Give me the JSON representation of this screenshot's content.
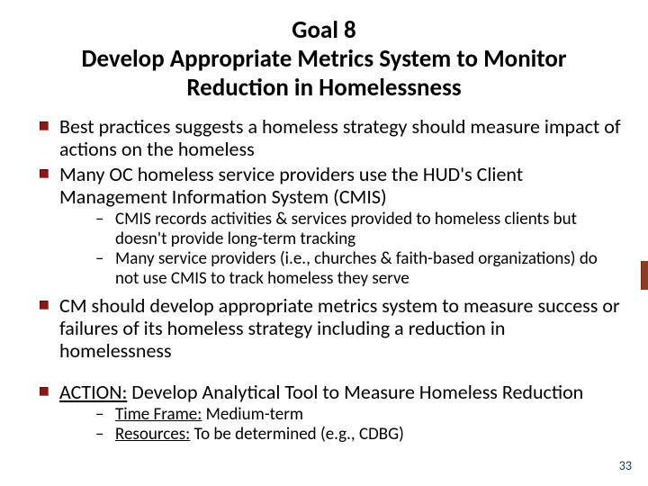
{
  "title": "Goal 8\nDevelop Appropriate Metrics System to Monitor Reduction in Homelessness",
  "bullets": {
    "b1": "Best practices suggests a homeless strategy should measure impact of actions on the homeless",
    "b2": "Many OC homeless service providers use the HUD's Client Management Information System (CMIS)",
    "b2_sub": {
      "s1": "CMIS records activities & services provided to homeless clients but doesn't provide long-term tracking",
      "s2": "Many service providers (i.e., churches & faith-based organizations) do not use CMIS to track homeless they serve"
    },
    "b3": "CM should develop appropriate metrics system to measure success or failures of its homeless strategy including a reduction in homelessness",
    "action": {
      "label": "ACTION:",
      "text": " Develop Analytical Tool to Measure Homeless Reduction"
    },
    "action_sub": {
      "s1_label": "Time Frame:",
      "s1_text": " Medium-term",
      "s2_label": "Resources:",
      "s2_text": "  To be determined (e.g., CDBG)"
    }
  },
  "page_number": "33",
  "colors": {
    "bullet_square": "#8a1818",
    "page_number": "#1a3a7a",
    "edge_bar": "#8a3d24",
    "text": "#000000",
    "background": "#ffffff"
  },
  "fonts": {
    "title_size_pt": 27,
    "l1_size_pt": 22,
    "l2_size_pt": 19,
    "family": "Calibri"
  }
}
